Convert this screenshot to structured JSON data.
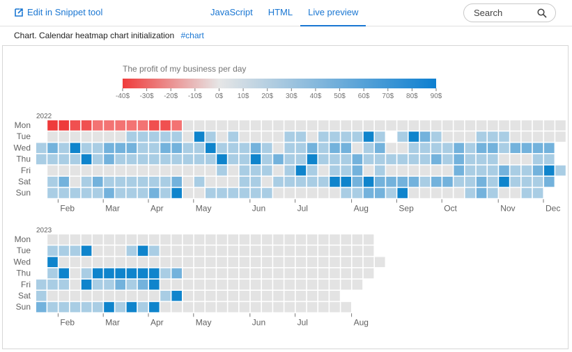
{
  "header": {
    "edit_label": "Edit in Snippet tool",
    "tabs": [
      {
        "label": "JavaScript",
        "active": false
      },
      {
        "label": "HTML",
        "active": false
      },
      {
        "label": "Live preview",
        "active": true
      }
    ],
    "search_label": "Search"
  },
  "info": {
    "title": "Chart. Calendar heatmap chart initialization",
    "tag": "#chart"
  },
  "chart_data": {
    "type": "heatmap",
    "title": "The profit of my business per day",
    "colorscale": {
      "min": -40,
      "max": 90,
      "colors": [
        "#ef3b3b",
        "#e6e6e6",
        "#0d7fd0"
      ],
      "tick_labels": [
        "-40$",
        "-30$",
        "-20$",
        "-10$",
        "0$",
        "10$",
        "20$",
        "30$",
        "40$",
        "50$",
        "60$",
        "70$",
        "80$",
        "90$"
      ]
    },
    "day_labels": [
      "Mon",
      "Tue",
      "Wed",
      "Thu",
      "Fri",
      "Sat",
      "Sun"
    ],
    "years": [
      {
        "year": "2022",
        "month_labels": [
          "Feb",
          "Mar",
          "Apr",
          "May",
          "Jun",
          "Jul",
          "Aug",
          "Sep",
          "Oct",
          "Nov",
          "Dec"
        ],
        "month_label_weeks": [
          2,
          6,
          10,
          14,
          19,
          23,
          28,
          32,
          36,
          41,
          45
        ],
        "levels": [
          "-ddccbbbbbccb0000000000000000000000000000000000",
          "-0000000111110310100001101111314132100011100000",
          "1213112221122113111210112122012001111212212222",
          "1111312111111111311312113111211111121211100011",
          "-0000000000000001011101310112010000002111211231",
          "-120121111112010001101111133232222122112131112",
          "-11111211121300111111000000112213000001210011"
        ]
      },
      {
        "year": "2023",
        "month_labels": [
          "Feb",
          "Mar",
          "Apr",
          "May",
          "Jun",
          "Jul",
          "Aug"
        ],
        "month_label_weeks": [
          2,
          6,
          10,
          14,
          19,
          23,
          28
        ],
        "levels": [
          "-00000000000000000000000000000",
          "-11130001310000000000000000000",
          "-300000000000000000000000000000",
          "-13013333331200000000000000000",
          "11103112123000000000000000000",
          "100000000001300000000000000",
          "2111113131300000000000000000"
        ]
      }
    ]
  }
}
